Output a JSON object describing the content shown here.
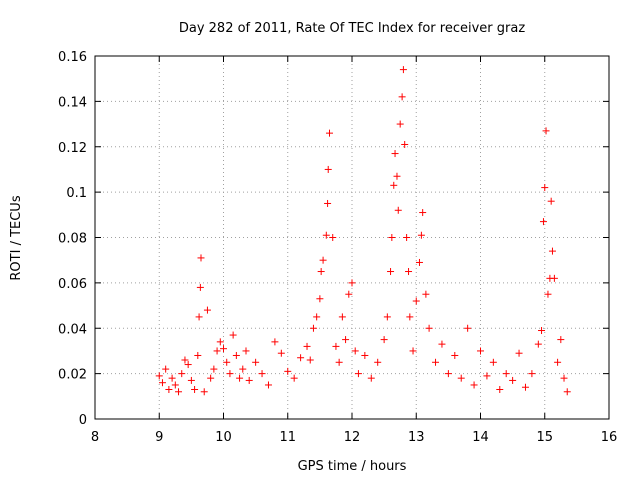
{
  "chart_data": {
    "type": "scatter",
    "title": "Day 282 of 2011, Rate Of TEC Index for receiver graz",
    "xlabel": "GPS time / hours",
    "ylabel": "ROTI / TECUs",
    "xlim": [
      8,
      16
    ],
    "ylim": [
      0,
      0.16
    ],
    "x_ticks": [
      "8",
      "9",
      "10",
      "11",
      "12",
      "13",
      "14",
      "15",
      "16"
    ],
    "y_ticks": [
      "0",
      "0.02",
      "0.04",
      "0.06",
      "0.08",
      "0.1",
      "0.12",
      "0.14",
      "0.16"
    ],
    "grid": true,
    "marker": "+",
    "color": "#ff0000",
    "series": [
      {
        "points": [
          [
            9.0,
            0.019
          ],
          [
            9.05,
            0.016
          ],
          [
            9.1,
            0.022
          ],
          [
            9.15,
            0.013
          ],
          [
            9.2,
            0.018
          ],
          [
            9.25,
            0.015
          ],
          [
            9.3,
            0.012
          ],
          [
            9.35,
            0.02
          ],
          [
            9.4,
            0.026
          ],
          [
            9.45,
            0.024
          ],
          [
            9.5,
            0.017
          ],
          [
            9.55,
            0.013
          ],
          [
            9.6,
            0.028
          ],
          [
            9.62,
            0.045
          ],
          [
            9.64,
            0.058
          ],
          [
            9.65,
            0.071
          ],
          [
            9.7,
            0.012
          ],
          [
            9.75,
            0.048
          ],
          [
            9.8,
            0.018
          ],
          [
            9.85,
            0.022
          ],
          [
            9.9,
            0.03
          ],
          [
            9.95,
            0.034
          ],
          [
            10.0,
            0.031
          ],
          [
            10.05,
            0.025
          ],
          [
            10.1,
            0.02
          ],
          [
            10.15,
            0.037
          ],
          [
            10.2,
            0.028
          ],
          [
            10.25,
            0.018
          ],
          [
            10.3,
            0.022
          ],
          [
            10.35,
            0.03
          ],
          [
            10.4,
            0.017
          ],
          [
            10.5,
            0.025
          ],
          [
            10.6,
            0.02
          ],
          [
            10.7,
            0.015
          ],
          [
            10.8,
            0.034
          ],
          [
            10.9,
            0.029
          ],
          [
            11.0,
            0.021
          ],
          [
            11.1,
            0.018
          ],
          [
            11.2,
            0.027
          ],
          [
            11.3,
            0.032
          ],
          [
            11.35,
            0.026
          ],
          [
            11.4,
            0.04
          ],
          [
            11.45,
            0.045
          ],
          [
            11.5,
            0.053
          ],
          [
            11.52,
            0.065
          ],
          [
            11.55,
            0.07
          ],
          [
            11.6,
            0.081
          ],
          [
            11.62,
            0.095
          ],
          [
            11.63,
            0.11
          ],
          [
            11.65,
            0.126
          ],
          [
            11.7,
            0.08
          ],
          [
            11.75,
            0.032
          ],
          [
            11.8,
            0.025
          ],
          [
            11.85,
            0.045
          ],
          [
            11.9,
            0.035
          ],
          [
            11.95,
            0.055
          ],
          [
            12.0,
            0.06
          ],
          [
            12.05,
            0.03
          ],
          [
            12.1,
            0.02
          ],
          [
            12.2,
            0.028
          ],
          [
            12.3,
            0.018
          ],
          [
            12.4,
            0.025
          ],
          [
            12.5,
            0.035
          ],
          [
            12.55,
            0.045
          ],
          [
            12.6,
            0.065
          ],
          [
            12.62,
            0.08
          ],
          [
            12.65,
            0.103
          ],
          [
            12.67,
            0.117
          ],
          [
            12.7,
            0.107
          ],
          [
            12.72,
            0.092
          ],
          [
            12.75,
            0.13
          ],
          [
            12.78,
            0.142
          ],
          [
            12.8,
            0.154
          ],
          [
            12.82,
            0.121
          ],
          [
            12.85,
            0.08
          ],
          [
            12.88,
            0.065
          ],
          [
            12.9,
            0.045
          ],
          [
            12.95,
            0.03
          ],
          [
            13.0,
            0.052
          ],
          [
            13.05,
            0.069
          ],
          [
            13.08,
            0.081
          ],
          [
            13.1,
            0.091
          ],
          [
            13.15,
            0.055
          ],
          [
            13.2,
            0.04
          ],
          [
            13.3,
            0.025
          ],
          [
            13.4,
            0.033
          ],
          [
            13.5,
            0.02
          ],
          [
            13.6,
            0.028
          ],
          [
            13.7,
            0.018
          ],
          [
            13.8,
            0.04
          ],
          [
            13.9,
            0.015
          ],
          [
            14.0,
            0.03
          ],
          [
            14.1,
            0.019
          ],
          [
            14.2,
            0.025
          ],
          [
            14.3,
            0.013
          ],
          [
            14.4,
            0.02
          ],
          [
            14.5,
            0.017
          ],
          [
            14.6,
            0.029
          ],
          [
            14.7,
            0.014
          ],
          [
            14.8,
            0.02
          ],
          [
            14.9,
            0.033
          ],
          [
            14.95,
            0.039
          ],
          [
            14.98,
            0.087
          ],
          [
            15.0,
            0.102
          ],
          [
            15.02,
            0.127
          ],
          [
            15.05,
            0.055
          ],
          [
            15.08,
            0.062
          ],
          [
            15.1,
            0.096
          ],
          [
            15.12,
            0.074
          ],
          [
            15.15,
            0.062
          ],
          [
            15.2,
            0.025
          ],
          [
            15.25,
            0.035
          ],
          [
            15.3,
            0.018
          ],
          [
            15.35,
            0.012
          ]
        ]
      }
    ]
  }
}
